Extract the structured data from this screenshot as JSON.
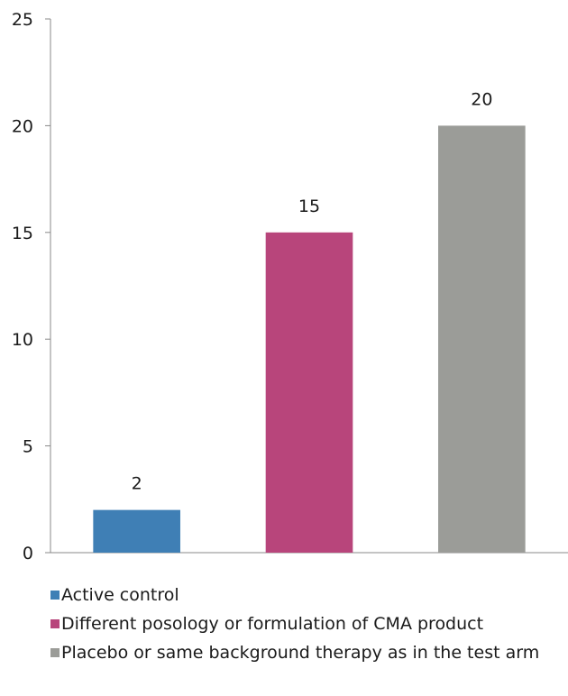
{
  "chart_data": {
    "type": "bar",
    "categories": [
      "Active control",
      "Different posology or formulation of CMA product",
      "Placebo or same background therapy as in the test arm"
    ],
    "values": [
      2,
      15,
      20
    ],
    "colors": [
      "#3f7fb5",
      "#b8457b",
      "#9b9c98"
    ],
    "ylim": [
      0,
      25
    ],
    "yticks": [
      0,
      5,
      10,
      15,
      20,
      25
    ],
    "data_labels": [
      "2",
      "15",
      "20"
    ],
    "grid": false,
    "legend_position": "bottom",
    "title": "",
    "xlabel": "",
    "ylabel": ""
  }
}
